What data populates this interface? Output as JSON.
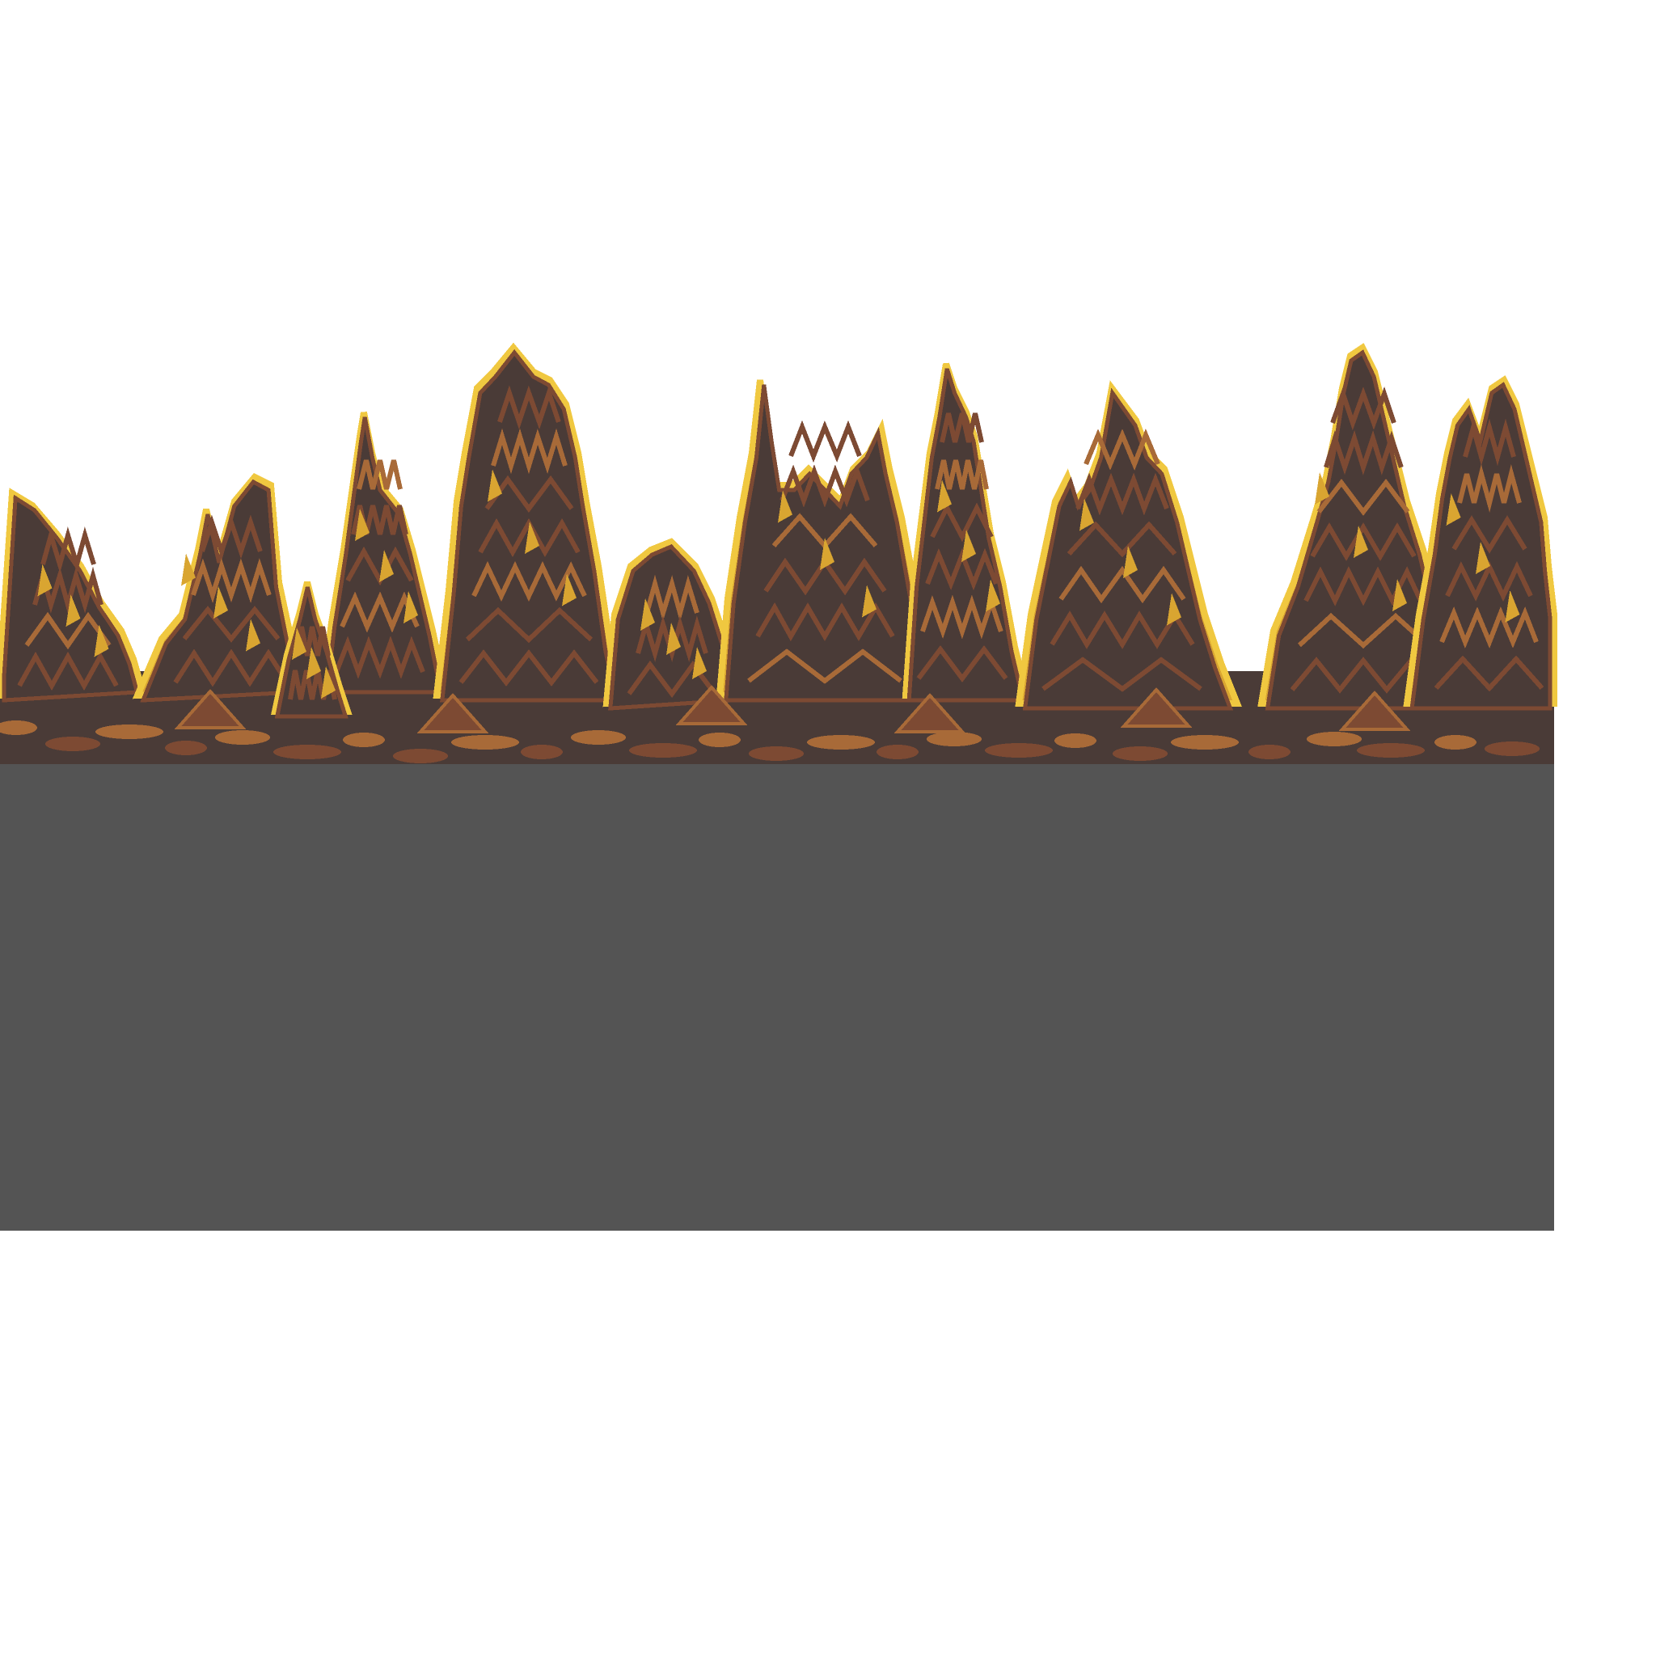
{
  "scene": {
    "name": "rocky-spire-cave-background",
    "palette": {
      "background": "#ffffff",
      "ground": "#545454",
      "rock_dark": "#4a3b37",
      "rock_brown": "#7d4a33",
      "rock_mid": "#a86a38",
      "highlight": "#d9a531",
      "edge_bright": "#f0c840",
      "outline": "#2f2420"
    },
    "spires": [
      {
        "id": "far-left-horn"
      },
      {
        "id": "left-double-spire"
      },
      {
        "id": "left-slim-spire"
      },
      {
        "id": "left-short-spire"
      },
      {
        "id": "tall-central-left-spire"
      },
      {
        "id": "mid-lumps"
      },
      {
        "id": "center-needle-cluster"
      },
      {
        "id": "center-tall-spire"
      },
      {
        "id": "center-right-spire"
      },
      {
        "id": "right-tall-spire"
      },
      {
        "id": "far-right-spire"
      }
    ]
  }
}
